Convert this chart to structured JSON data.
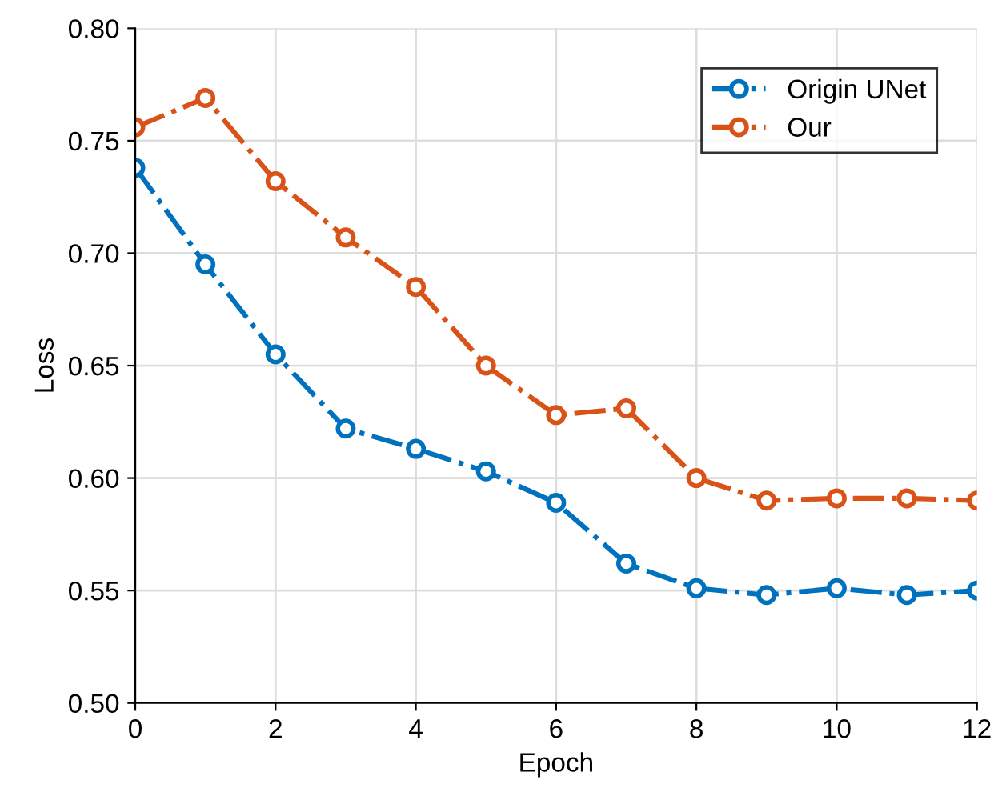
{
  "chart_data": {
    "type": "line",
    "xlabel": "Epoch",
    "ylabel": "Loss",
    "x": [
      0,
      1,
      2,
      3,
      4,
      5,
      6,
      7,
      8,
      9,
      10,
      11,
      12
    ],
    "series": [
      {
        "name": "Origin UNet",
        "color": "#0072bd",
        "values": [
          0.738,
          0.695,
          0.655,
          0.622,
          0.613,
          0.603,
          0.589,
          0.562,
          0.551,
          0.548,
          0.551,
          0.548,
          0.55
        ]
      },
      {
        "name": "Our",
        "color": "#d95319",
        "values": [
          0.756,
          0.769,
          0.732,
          0.707,
          0.685,
          0.65,
          0.628,
          0.631,
          0.6,
          0.59,
          0.591,
          0.591,
          0.59
        ]
      }
    ],
    "xlim": [
      0,
      12
    ],
    "xticks": [
      0,
      2,
      4,
      6,
      8,
      10,
      12
    ],
    "ylim": [
      0.5,
      0.8
    ],
    "yticks": [
      {
        "value": 0.5,
        "label": "0.50"
      },
      {
        "value": 0.55,
        "label": "0.55"
      },
      {
        "value": 0.6,
        "label": "0.60"
      },
      {
        "value": 0.65,
        "label": "0.65"
      },
      {
        "value": 0.7,
        "label": "0.70"
      },
      {
        "value": 0.75,
        "label": "0.75"
      },
      {
        "value": 0.8,
        "label": "0.80"
      }
    ],
    "grid": true,
    "legend": "top right",
    "marker": "circle",
    "line_style": "dashdot"
  }
}
